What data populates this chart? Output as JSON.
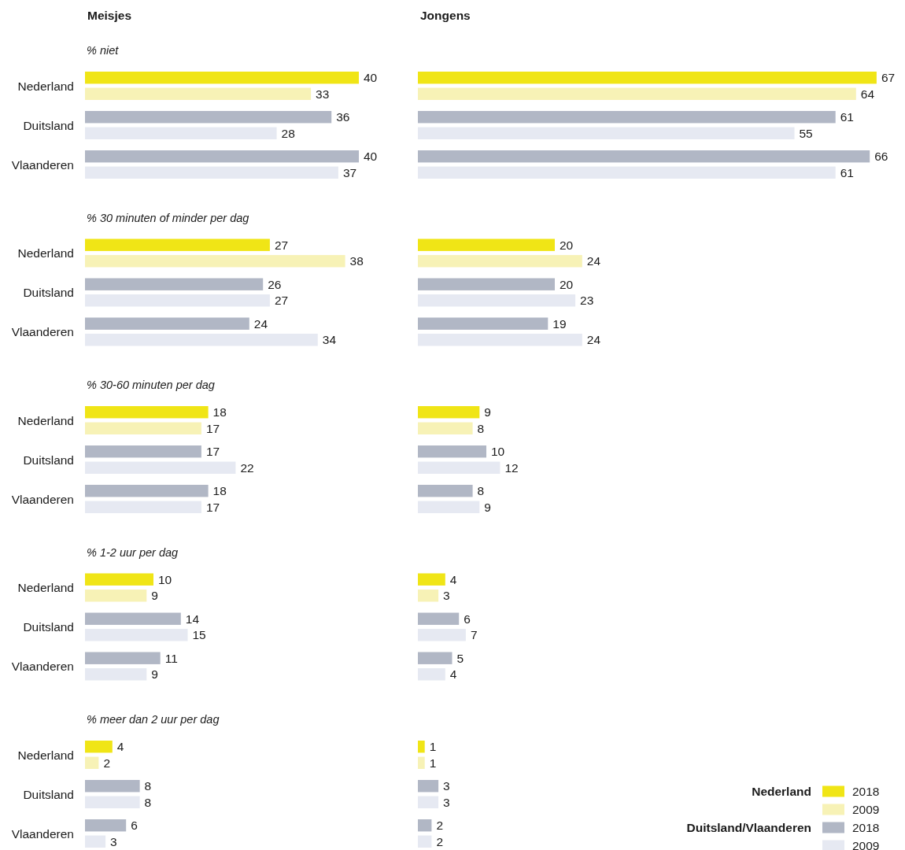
{
  "chart_data": [
    {
      "type": "bar",
      "orientation": "horizontal",
      "title": "Meisjes",
      "subtitle": "% niet",
      "categories": [
        "Nederland",
        "Duitsland",
        "Vlaanderen"
      ],
      "series": [
        {
          "colors": [
            "#f0e516",
            "#b1b7c5",
            "#b1b7c5"
          ],
          "values": [
            40,
            36,
            40
          ]
        },
        {
          "colors": [
            "#f7f2b6",
            "#e6e9f2",
            "#e6e9f2"
          ],
          "values": [
            33,
            28,
            37
          ]
        }
      ],
      "data_labels": true,
      "tick_labels": "y"
    },
    {
      "type": "bar",
      "orientation": "horizontal",
      "title": "Jongens",
      "categories": [
        null,
        null,
        null
      ],
      "series": [
        {
          "colors": [
            "#f0e516",
            "#b1b7c5",
            "#b1b7c5"
          ],
          "values": [
            67,
            61,
            66
          ]
        },
        {
          "colors": [
            "#f7f2b6",
            "#e6e9f2",
            "#e6e9f2"
          ],
          "values": [
            64,
            55,
            61
          ]
        }
      ],
      "data_labels": true
    },
    {
      "type": "bar",
      "orientation": "horizontal",
      "subtitle": "% 30 minuten of minder per dag",
      "categories": [
        "Nederland",
        "Duitsland",
        "Vlaanderen"
      ],
      "series": [
        {
          "colors": [
            "#f0e516",
            "#b1b7c5",
            "#b1b7c5"
          ],
          "values": [
            27,
            26,
            24
          ]
        },
        {
          "colors": [
            "#f7f2b6",
            "#e6e9f2",
            "#e6e9f2"
          ],
          "values": [
            38,
            27,
            34
          ]
        }
      ],
      "data_labels": true,
      "tick_labels": "y"
    },
    {
      "type": "bar",
      "orientation": "horizontal",
      "categories": [
        null,
        null,
        null
      ],
      "series": [
        {
          "colors": [
            "#f0e516",
            "#b1b7c5",
            "#b1b7c5"
          ],
          "values": [
            20,
            20,
            19
          ]
        },
        {
          "colors": [
            "#f7f2b6",
            "#e6e9f2",
            "#e6e9f2"
          ],
          "values": [
            24,
            23,
            24
          ]
        }
      ],
      "data_labels": true
    },
    {
      "type": "bar",
      "orientation": "horizontal",
      "subtitle": "% 30-60 minuten per dag",
      "categories": [
        "Nederland",
        "Duitsland",
        "Vlaanderen"
      ],
      "series": [
        {
          "colors": [
            "#f0e516",
            "#b1b7c5",
            "#b1b7c5"
          ],
          "values": [
            18,
            17,
            18
          ]
        },
        {
          "colors": [
            "#f7f2b6",
            "#e6e9f2",
            "#e6e9f2"
          ],
          "values": [
            17,
            22,
            17
          ]
        }
      ],
      "data_labels": true,
      "tick_labels": "y"
    },
    {
      "type": "bar",
      "orientation": "horizontal",
      "categories": [
        null,
        null,
        null
      ],
      "series": [
        {
          "colors": [
            "#f0e516",
            "#b1b7c5",
            "#b1b7c5"
          ],
          "values": [
            9,
            10,
            8
          ]
        },
        {
          "colors": [
            "#f7f2b6",
            "#e6e9f2",
            "#e6e9f2"
          ],
          "values": [
            8,
            12,
            9
          ]
        }
      ],
      "data_labels": true
    },
    {
      "type": "bar",
      "orientation": "horizontal",
      "subtitle": "% 1-2 uur per dag",
      "categories": [
        "Nederland",
        "Duitsland",
        "Vlaanderen"
      ],
      "series": [
        {
          "colors": [
            "#f0e516",
            "#b1b7c5",
            "#b1b7c5"
          ],
          "values": [
            10,
            14,
            11
          ]
        },
        {
          "colors": [
            "#f7f2b6",
            "#e6e9f2",
            "#e6e9f2"
          ],
          "values": [
            9,
            15,
            9
          ]
        }
      ],
      "data_labels": true,
      "tick_labels": "y"
    },
    {
      "type": "bar",
      "orientation": "horizontal",
      "categories": [
        null,
        null,
        null
      ],
      "series": [
        {
          "colors": [
            "#f0e516",
            "#b1b7c5",
            "#b1b7c5"
          ],
          "values": [
            4,
            6,
            5
          ]
        },
        {
          "colors": [
            "#f7f2b6",
            "#e6e9f2",
            "#e6e9f2"
          ],
          "values": [
            3,
            7,
            4
          ]
        }
      ],
      "data_labels": true
    },
    {
      "type": "bar",
      "orientation": "horizontal",
      "subtitle": "% meer dan 2 uur per dag",
      "categories": [
        "Nederland",
        "Duitsland",
        "Vlaanderen"
      ],
      "series": [
        {
          "colors": [
            "#f0e516",
            "#b1b7c5",
            "#b1b7c5"
          ],
          "values": [
            4,
            8,
            6
          ]
        },
        {
          "colors": [
            "#f7f2b6",
            "#e6e9f2",
            "#e6e9f2"
          ],
          "values": [
            2,
            8,
            3
          ]
        }
      ],
      "data_labels": true,
      "tick_labels": "y"
    },
    {
      "type": "bar",
      "orientation": "horizontal",
      "categories": [
        null,
        null,
        null
      ],
      "series": [
        {
          "name": "2018",
          "colors": [
            "#f0e516",
            "#b1b7c5",
            "#b1b7c5"
          ],
          "values": [
            1,
            3,
            2
          ]
        },
        {
          "name": "2009",
          "colors": [
            "#f7f2b6",
            "#e6e9f2",
            "#e6e9f2"
          ],
          "values": [
            1,
            3,
            2
          ]
        }
      ],
      "data_labels": true,
      "legend": "bottom right",
      "annotations": [
        "Nederland",
        "Duitsland/Vlaanderen"
      ]
    }
  ]
}
